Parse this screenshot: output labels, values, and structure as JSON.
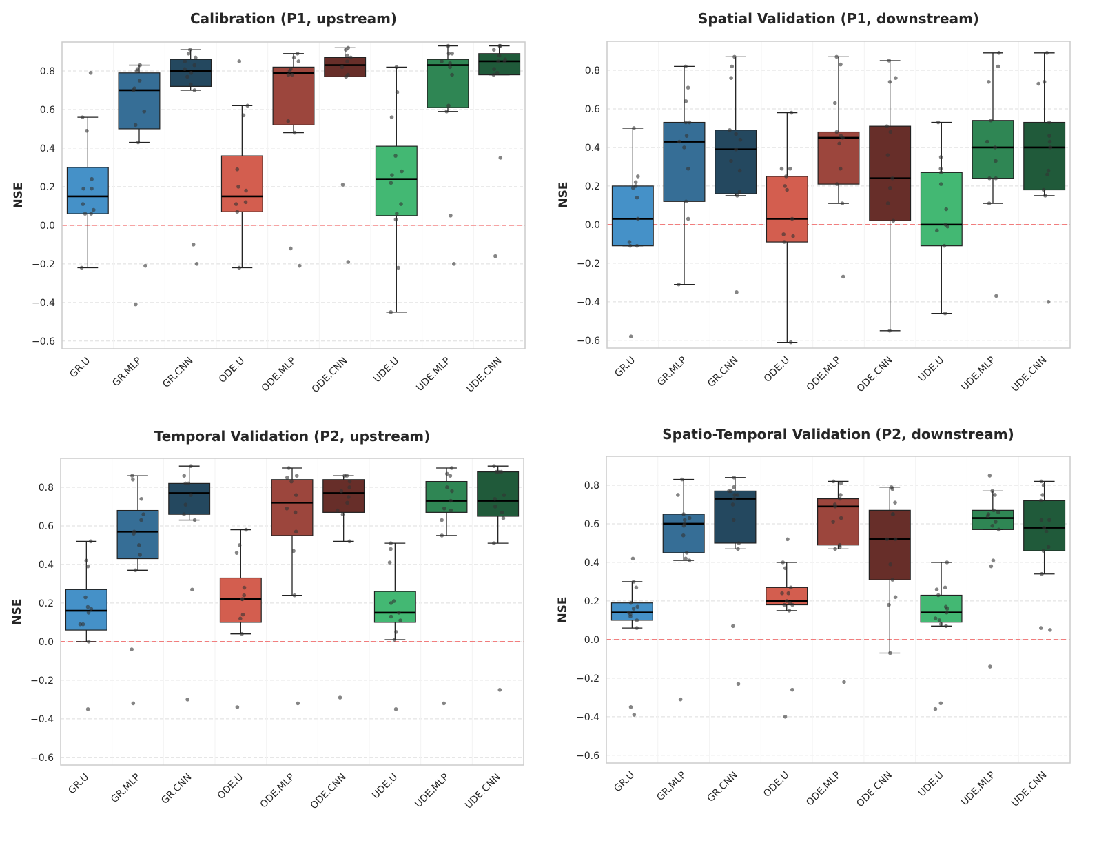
{
  "figure": {
    "ylabel": "NSE"
  },
  "chart_data": [
    {
      "type": "box",
      "title": "Calibration (P1, upstream)",
      "xlabel": "",
      "ylabel": "NSE",
      "ylim": [
        -0.64,
        0.95
      ],
      "yticks": [
        -0.6,
        -0.4,
        -0.2,
        0.0,
        0.2,
        0.4,
        0.6,
        0.8
      ],
      "grid": "y-dashed",
      "reference_line": {
        "y": 0.0,
        "style": "dashed",
        "color": "#f25555"
      },
      "categories": [
        "GR.U",
        "GR.MLP",
        "GR.CNN",
        "ODE.U",
        "ODE.MLP",
        "ODE.CNN",
        "UDE.U",
        "UDE.MLP",
        "UDE.CNN"
      ],
      "boxes": [
        {
          "whislo": -0.22,
          "q1": 0.06,
          "med": 0.15,
          "q3": 0.3,
          "whishi": 0.56,
          "points": [
            0.79,
            0.56,
            0.49,
            0.24,
            0.19,
            0.19,
            0.11,
            0.08,
            0.06,
            0.06,
            -0.22
          ]
        },
        {
          "whislo": 0.43,
          "q1": 0.5,
          "med": 0.7,
          "q3": 0.79,
          "whishi": 0.83,
          "points": [
            0.83,
            0.81,
            0.8,
            0.75,
            0.71,
            0.7,
            0.59,
            0.52,
            0.43,
            -0.21,
            -0.41
          ]
        },
        {
          "whislo": 0.7,
          "q1": 0.72,
          "med": 0.8,
          "q3": 0.86,
          "whishi": 0.91,
          "points": [
            0.91,
            0.89,
            0.87,
            0.85,
            0.83,
            0.81,
            0.79,
            0.77,
            0.73,
            0.7,
            -0.1,
            -0.2
          ]
        },
        {
          "whislo": -0.22,
          "q1": 0.07,
          "med": 0.15,
          "q3": 0.36,
          "whishi": 0.62,
          "points": [
            0.85,
            0.62,
            0.57,
            0.29,
            0.2,
            0.18,
            0.12,
            0.11,
            0.07,
            -0.22
          ]
        },
        {
          "whislo": 0.48,
          "q1": 0.52,
          "med": 0.79,
          "q3": 0.82,
          "whishi": 0.89,
          "points": [
            0.89,
            0.87,
            0.85,
            0.81,
            0.8,
            0.78,
            0.78,
            0.54,
            0.48,
            -0.12,
            -0.21
          ]
        },
        {
          "whislo": 0.77,
          "q1": 0.77,
          "med": 0.83,
          "q3": 0.87,
          "whishi": 0.92,
          "points": [
            0.92,
            0.91,
            0.88,
            0.87,
            0.85,
            0.82,
            0.78,
            0.77,
            0.21,
            -0.19
          ]
        },
        {
          "whislo": -0.45,
          "q1": 0.05,
          "med": 0.24,
          "q3": 0.41,
          "whishi": 0.82,
          "points": [
            0.82,
            0.69,
            0.56,
            0.36,
            0.28,
            0.26,
            0.22,
            0.11,
            0.06,
            0.03,
            -0.22,
            -0.45
          ]
        },
        {
          "whislo": 0.59,
          "q1": 0.61,
          "med": 0.83,
          "q3": 0.86,
          "whishi": 0.93,
          "points": [
            0.93,
            0.89,
            0.89,
            0.85,
            0.84,
            0.82,
            0.78,
            0.62,
            0.59,
            0.05,
            -0.2
          ]
        },
        {
          "whislo": 0.78,
          "q1": 0.78,
          "med": 0.85,
          "q3": 0.89,
          "whishi": 0.93,
          "points": [
            0.93,
            0.93,
            0.91,
            0.88,
            0.86,
            0.85,
            0.85,
            0.81,
            0.79,
            0.78,
            0.35,
            -0.16
          ]
        }
      ]
    },
    {
      "type": "box",
      "title": "Spatial Validation (P1, downstream)",
      "xlabel": "",
      "ylabel": "NSE",
      "ylim": [
        -0.64,
        0.95
      ],
      "yticks": [
        -0.6,
        -0.4,
        -0.2,
        0.0,
        0.2,
        0.4,
        0.6,
        0.8
      ],
      "grid": "y-dashed",
      "reference_line": {
        "y": 0.0,
        "style": "dashed",
        "color": "#f25555"
      },
      "categories": [
        "GR.U",
        "GR.MLP",
        "GR.CNN",
        "ODE.U",
        "ODE.MLP",
        "ODE.CNN",
        "UDE.U",
        "UDE.MLP",
        "UDE.CNN"
      ],
      "boxes": [
        {
          "whislo": -0.11,
          "q1": -0.11,
          "med": 0.03,
          "q3": 0.2,
          "whishi": 0.5,
          "points": [
            0.5,
            0.25,
            0.22,
            0.2,
            0.19,
            0.14,
            0.03,
            -0.09,
            -0.11,
            -0.11,
            -0.58
          ]
        },
        {
          "whislo": -0.31,
          "q1": 0.12,
          "med": 0.43,
          "q3": 0.53,
          "whishi": 0.82,
          "points": [
            0.82,
            0.71,
            0.64,
            0.53,
            0.53,
            0.46,
            0.43,
            0.4,
            0.29,
            0.12,
            0.03,
            -0.31
          ]
        },
        {
          "whislo": 0.15,
          "q1": 0.16,
          "med": 0.39,
          "q3": 0.49,
          "whishi": 0.87,
          "points": [
            0.87,
            0.82,
            0.76,
            0.49,
            0.47,
            0.44,
            0.39,
            0.33,
            0.28,
            0.17,
            0.15,
            -0.35
          ]
        },
        {
          "whislo": -0.61,
          "q1": -0.09,
          "med": 0.03,
          "q3": 0.25,
          "whishi": 0.58,
          "points": [
            0.58,
            0.29,
            0.29,
            0.25,
            0.2,
            0.18,
            0.03,
            -0.05,
            -0.06,
            -0.09,
            -0.61
          ]
        },
        {
          "whislo": 0.11,
          "q1": 0.21,
          "med": 0.45,
          "q3": 0.48,
          "whishi": 0.87,
          "points": [
            0.87,
            0.83,
            0.63,
            0.48,
            0.46,
            0.45,
            0.42,
            0.29,
            0.21,
            0.11,
            -0.27
          ]
        },
        {
          "whislo": -0.55,
          "q1": 0.02,
          "med": 0.24,
          "q3": 0.51,
          "whishi": 0.85,
          "points": [
            0.85,
            0.76,
            0.74,
            0.51,
            0.48,
            0.36,
            0.24,
            0.19,
            0.11,
            0.02,
            -0.55
          ]
        },
        {
          "whislo": -0.46,
          "q1": -0.11,
          "med": 0.0,
          "q3": 0.27,
          "whishi": 0.53,
          "points": [
            0.53,
            0.35,
            0.29,
            0.27,
            0.21,
            0.08,
            0.0,
            -0.01,
            -0.03,
            -0.11,
            -0.46
          ]
        },
        {
          "whislo": 0.11,
          "q1": 0.24,
          "med": 0.4,
          "q3": 0.54,
          "whishi": 0.89,
          "points": [
            0.89,
            0.82,
            0.74,
            0.54,
            0.43,
            0.4,
            0.33,
            0.24,
            0.24,
            0.11,
            -0.37
          ]
        },
        {
          "whislo": 0.15,
          "q1": 0.18,
          "med": 0.4,
          "q3": 0.53,
          "whishi": 0.89,
          "points": [
            0.89,
            0.74,
            0.73,
            0.53,
            0.46,
            0.43,
            0.4,
            0.28,
            0.26,
            0.18,
            0.15,
            -0.4
          ]
        }
      ]
    },
    {
      "type": "box",
      "title": "Temporal Validation (P2, upstream)",
      "xlabel": "",
      "ylabel": "NSE",
      "ylim": [
        -0.64,
        0.95
      ],
      "yticks": [
        -0.6,
        -0.4,
        -0.2,
        0.0,
        0.2,
        0.4,
        0.6,
        0.8
      ],
      "grid": "y-dashed",
      "reference_line": {
        "y": 0.0,
        "style": "dashed",
        "color": "#f25555"
      },
      "categories": [
        "GR.U",
        "GR.MLP",
        "GR.CNN",
        "ODE.U",
        "ODE.MLP",
        "ODE.CNN",
        "UDE.U",
        "UDE.MLP",
        "UDE.CNN"
      ],
      "boxes": [
        {
          "whislo": 0.0,
          "q1": 0.06,
          "med": 0.16,
          "q3": 0.27,
          "whishi": 0.52,
          "points": [
            0.52,
            0.42,
            0.39,
            0.23,
            0.18,
            0.17,
            0.15,
            0.09,
            0.09,
            0.0,
            -0.35
          ]
        },
        {
          "whislo": 0.37,
          "q1": 0.43,
          "med": 0.57,
          "q3": 0.68,
          "whishi": 0.86,
          "points": [
            0.86,
            0.84,
            0.74,
            0.66,
            0.63,
            0.57,
            0.56,
            0.5,
            0.45,
            0.37,
            -0.04,
            -0.32
          ]
        },
        {
          "whislo": 0.63,
          "q1": 0.66,
          "med": 0.77,
          "q3": 0.82,
          "whishi": 0.91,
          "points": [
            0.91,
            0.86,
            0.82,
            0.82,
            0.76,
            0.71,
            0.66,
            0.63,
            0.27,
            -0.3
          ]
        },
        {
          "whislo": 0.04,
          "q1": 0.1,
          "med": 0.22,
          "q3": 0.33,
          "whishi": 0.58,
          "points": [
            0.58,
            0.5,
            0.46,
            0.28,
            0.24,
            0.22,
            0.22,
            0.14,
            0.12,
            0.04,
            -0.34
          ]
        },
        {
          "whislo": 0.24,
          "q1": 0.55,
          "med": 0.72,
          "q3": 0.84,
          "whishi": 0.9,
          "points": [
            0.9,
            0.86,
            0.85,
            0.83,
            0.76,
            0.69,
            0.67,
            0.57,
            0.47,
            0.24,
            -0.32
          ]
        },
        {
          "whislo": 0.52,
          "q1": 0.67,
          "med": 0.77,
          "q3": 0.84,
          "whishi": 0.86,
          "points": [
            0.86,
            0.86,
            0.83,
            0.8,
            0.78,
            0.75,
            0.72,
            0.68,
            0.66,
            0.52,
            -0.29
          ]
        },
        {
          "whislo": 0.01,
          "q1": 0.1,
          "med": 0.15,
          "q3": 0.26,
          "whishi": 0.51,
          "points": [
            0.51,
            0.48,
            0.41,
            0.21,
            0.2,
            0.15,
            0.13,
            0.11,
            0.05,
            0.01,
            -0.35
          ]
        },
        {
          "whislo": 0.55,
          "q1": 0.67,
          "med": 0.73,
          "q3": 0.83,
          "whishi": 0.9,
          "points": [
            0.9,
            0.87,
            0.86,
            0.8,
            0.78,
            0.73,
            0.69,
            0.68,
            0.63,
            0.55,
            -0.32
          ]
        },
        {
          "whislo": 0.51,
          "q1": 0.65,
          "med": 0.73,
          "q3": 0.88,
          "whishi": 0.91,
          "points": [
            0.91,
            0.88,
            0.88,
            0.88,
            0.76,
            0.74,
            0.7,
            0.67,
            0.64,
            0.51,
            -0.25
          ]
        }
      ]
    },
    {
      "type": "box",
      "title": "Spatio-Temporal Validation (P2, downstream)",
      "xlabel": "",
      "ylabel": "NSE",
      "ylim": [
        -0.64,
        0.95
      ],
      "yticks": [
        -0.6,
        -0.4,
        -0.2,
        0.0,
        0.2,
        0.4,
        0.6,
        0.8
      ],
      "grid": "y-dashed",
      "reference_line": {
        "y": 0.0,
        "style": "dashed",
        "color": "#f25555"
      },
      "categories": [
        "GR.U",
        "GR.MLP",
        "GR.CNN",
        "ODE.U",
        "ODE.MLP",
        "ODE.CNN",
        "UDE.U",
        "UDE.MLP",
        "UDE.CNN"
      ],
      "boxes": [
        {
          "whislo": 0.06,
          "q1": 0.1,
          "med": 0.14,
          "q3": 0.19,
          "whishi": 0.3,
          "points": [
            0.42,
            0.3,
            0.27,
            0.19,
            0.17,
            0.16,
            0.14,
            0.13,
            0.12,
            0.1,
            0.06,
            -0.35,
            -0.39
          ]
        },
        {
          "whislo": 0.41,
          "q1": 0.45,
          "med": 0.6,
          "q3": 0.65,
          "whishi": 0.83,
          "points": [
            0.83,
            0.75,
            0.65,
            0.63,
            0.62,
            0.6,
            0.59,
            0.54,
            0.45,
            0.42,
            0.41,
            -0.31
          ]
        },
        {
          "whislo": 0.47,
          "q1": 0.5,
          "med": 0.73,
          "q3": 0.77,
          "whishi": 0.84,
          "points": [
            0.84,
            0.79,
            0.77,
            0.77,
            0.75,
            0.75,
            0.73,
            0.7,
            0.62,
            0.5,
            0.47,
            0.07,
            -0.23
          ]
        },
        {
          "whislo": 0.15,
          "q1": 0.18,
          "med": 0.2,
          "q3": 0.27,
          "whishi": 0.4,
          "points": [
            0.52,
            0.4,
            0.37,
            0.27,
            0.24,
            0.24,
            0.2,
            0.19,
            0.18,
            0.18,
            0.15,
            -0.26,
            -0.4
          ]
        },
        {
          "whislo": 0.47,
          "q1": 0.49,
          "med": 0.69,
          "q3": 0.73,
          "whishi": 0.82,
          "points": [
            0.82,
            0.81,
            0.75,
            0.73,
            0.7,
            0.69,
            0.63,
            0.61,
            0.49,
            0.48,
            0.47,
            -0.22
          ]
        },
        {
          "whislo": -0.07,
          "q1": 0.31,
          "med": 0.52,
          "q3": 0.67,
          "whishi": 0.79,
          "points": [
            0.79,
            0.78,
            0.71,
            0.65,
            0.65,
            0.52,
            0.52,
            0.39,
            0.31,
            0.22,
            0.18,
            -0.07
          ]
        },
        {
          "whislo": 0.07,
          "q1": 0.09,
          "med": 0.14,
          "q3": 0.23,
          "whishi": 0.4,
          "points": [
            0.4,
            0.27,
            0.26,
            0.23,
            0.17,
            0.16,
            0.14,
            0.11,
            0.1,
            0.08,
            0.07,
            -0.33,
            -0.36
          ]
        },
        {
          "whislo": 0.57,
          "q1": 0.57,
          "med": 0.63,
          "q3": 0.67,
          "whishi": 0.77,
          "points": [
            0.85,
            0.77,
            0.75,
            0.67,
            0.66,
            0.65,
            0.64,
            0.61,
            0.59,
            0.57,
            0.41,
            0.38,
            -0.14
          ]
        },
        {
          "whislo": 0.34,
          "q1": 0.46,
          "med": 0.58,
          "q3": 0.72,
          "whishi": 0.82,
          "points": [
            0.82,
            0.8,
            0.75,
            0.72,
            0.62,
            0.62,
            0.58,
            0.56,
            0.48,
            0.46,
            0.34,
            0.06,
            0.05
          ]
        }
      ]
    }
  ],
  "palette": {
    "GR.U": "#4591c8",
    "GR.MLP": "#366e96",
    "GR.CNN": "#24485f",
    "ODE.U": "#d35e4f",
    "ODE.MLP": "#9c463d",
    "ODE.CNN": "#672e29",
    "UDE.U": "#43b873",
    "UDE.MLP": "#2f8654",
    "UDE.CNN": "#205a3a",
    "reference_line": "#f25555",
    "grid": "#dddddd",
    "frame": "#cccccc",
    "point": "#333333"
  }
}
